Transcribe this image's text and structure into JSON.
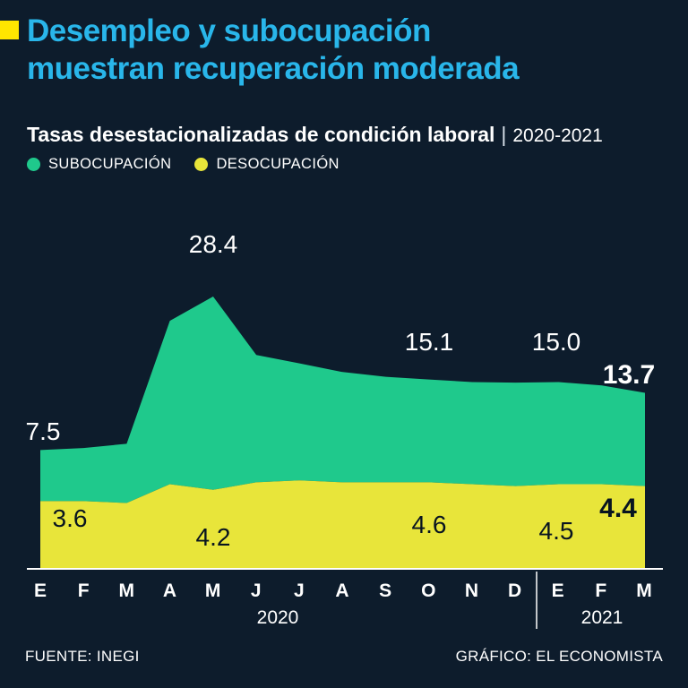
{
  "page": {
    "background_color": "#0d1c2c",
    "accent_color": "#ffe600",
    "title_color": "#29b6ea"
  },
  "header": {
    "title_line1": "Desempleo y subocupación",
    "title_line2": "muestran recuperación moderada",
    "subtitle": "Tasas desestacionalizadas de condición laboral",
    "subtitle_separator": "|",
    "period": "2020-2021"
  },
  "legend": {
    "items": [
      {
        "label": "SUBOCUPACIÓN",
        "color": "#1fc98c"
      },
      {
        "label": "DESOCUPACIÓN",
        "color": "#e8e53a"
      }
    ]
  },
  "chart_data": {
    "type": "area",
    "title": "Tasas desestacionalizadas de condición laboral 2020-2021",
    "xlabel": "",
    "ylabel": "",
    "grid": false,
    "legend_position": "top-left",
    "stacked_visual": true,
    "categories": [
      "E",
      "F",
      "M",
      "A",
      "M",
      "J",
      "J",
      "A",
      "S",
      "O",
      "N",
      "D",
      "E",
      "F",
      "M"
    ],
    "x_axis_years": [
      {
        "label": "2020",
        "from_index": 0,
        "to_index": 11
      },
      {
        "label": "2021",
        "from_index": 12,
        "to_index": 14
      }
    ],
    "series": [
      {
        "name": "SUBOCUPACIÓN",
        "color": "#1fc98c",
        "values": [
          7.5,
          7.8,
          8.7,
          24.0,
          28.4,
          18.7,
          17.2,
          16.2,
          15.5,
          15.1,
          15.0,
          15.2,
          15.0,
          14.5,
          13.7
        ]
      },
      {
        "name": "DESOCUPACIÓN",
        "color": "#e8e53a",
        "values": [
          3.6,
          3.6,
          3.5,
          4.5,
          4.2,
          4.6,
          4.7,
          4.6,
          4.6,
          4.6,
          4.5,
          4.4,
          4.5,
          4.5,
          4.4
        ]
      }
    ],
    "labels": {
      "sub_start": "7.5",
      "sub_peak": "28.4",
      "sub_oct": "15.1",
      "sub_jan": "15.0",
      "sub_last": "13.7",
      "des_start": "3.6",
      "des_may": "4.2",
      "des_oct": "4.6",
      "des_jan": "4.5",
      "des_last": "4.4"
    },
    "axis_color": "#ffffff"
  },
  "axis": {
    "year_left": "2020",
    "year_right": "2021"
  },
  "footer": {
    "source": "FUENTE: INEGI",
    "credit": "GRÁFICO: EL ECONOMISTA"
  }
}
